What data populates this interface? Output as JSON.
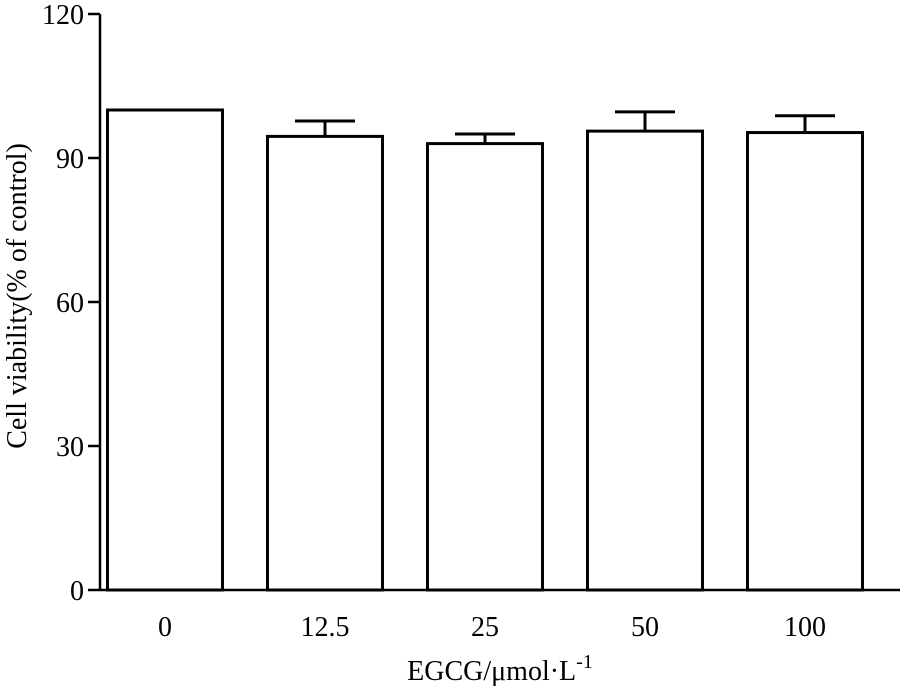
{
  "chart_data": {
    "type": "bar",
    "title": "",
    "xlabel": "EGCG/μmol·L",
    "xlabel_superscript": "-1",
    "ylabel": "Cell viability(% of control)",
    "categories": [
      "0",
      "12.5",
      "25",
      "50",
      "100"
    ],
    "values": [
      100,
      94.5,
      93,
      95.6,
      95.3
    ],
    "errors": [
      0,
      3.2,
      2.0,
      4.0,
      3.5
    ],
    "ylim": [
      0,
      120
    ],
    "yticks": [
      0,
      30,
      60,
      90,
      120
    ],
    "ytick_labels": [
      "0",
      "30",
      "60",
      "90",
      "120"
    ],
    "grid": false,
    "bar_color": "#ffffff",
    "edge_color": "#000000"
  }
}
